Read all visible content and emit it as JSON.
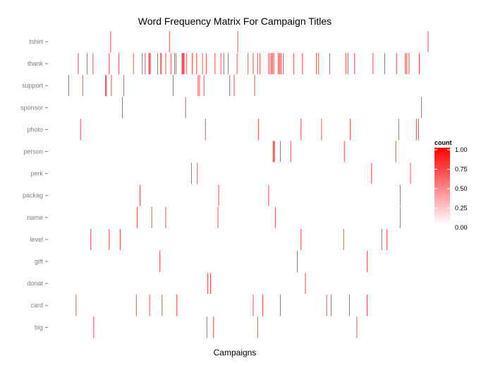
{
  "chart_data": {
    "type": "heatmap",
    "title": "Word Frequency Matrix For Campaign Titles",
    "xlabel": "Campaigns",
    "ylabel": "",
    "x_range": [
      0,
      500
    ],
    "grid": false,
    "words": [
      "tshirt",
      "thank",
      "support",
      "sponsor",
      "photo",
      "person",
      "perk",
      "packag",
      "name",
      "level",
      "gift",
      "donat",
      "card",
      "big"
    ],
    "cell_color_max": "#ff0000",
    "cell_color_min": "#ffffff",
    "cells": [
      {
        "word": "tshirt",
        "campaigns": [
          80,
          160,
          253,
          512
        ]
      },
      {
        "word": "thank",
        "campaigns": [
          36,
          48,
          56,
          78,
          91,
          111,
          123,
          127,
          132,
          133,
          134,
          144,
          148,
          149,
          155,
          162,
          167,
          169,
          177,
          178,
          179,
          180,
          183,
          191,
          197,
          205,
          210,
          222,
          230,
          234,
          240,
          252,
          267,
          274,
          280,
          283,
          295,
          297,
          299,
          300,
          302,
          308,
          310,
          312,
          315,
          329,
          341,
          360,
          363,
          378,
          400,
          403,
          412,
          437,
          453,
          469,
          481,
          483,
          486,
          500
        ]
      },
      {
        "word": "support",
        "campaigns": [
          23,
          42,
          73,
          74,
          81,
          98,
          165,
          199,
          201,
          207,
          242,
          248,
          276
        ]
      },
      {
        "word": "sponsor",
        "campaigns": [
          96,
          182,
          503
        ]
      },
      {
        "word": "photo",
        "campaigns": [
          39,
          209,
          281,
          339,
          367,
          406,
          472,
          496,
          499
        ]
      },
      {
        "word": "person",
        "campaigns": [
          301,
          302,
          303,
          311,
          325,
          398,
          468
        ]
      },
      {
        "word": "perk",
        "campaigns": [
          190,
          198,
          435,
          488
        ]
      },
      {
        "word": "packag",
        "campaigns": [
          120,
          227,
          295,
          474
        ]
      },
      {
        "word": "name",
        "campaigns": [
          116,
          136,
          155,
          226,
          304,
          474
        ]
      },
      {
        "word": "level",
        "campaigns": [
          53,
          78,
          93,
          339,
          397,
          449,
          456
        ]
      },
      {
        "word": "gift",
        "campaigns": [
          147,
          334,
          429
        ]
      },
      {
        "word": "donat",
        "campaigns": [
          212,
          216,
          345
        ]
      },
      {
        "word": "card",
        "campaigns": [
          33,
          115,
          133,
          150,
          170,
          274,
          287,
          311,
          374,
          380,
          405,
          429
        ]
      },
      {
        "word": "big",
        "campaigns": [
          57,
          211,
          220,
          280,
          415
        ]
      }
    ],
    "legend": {
      "title": "count",
      "placement": "right",
      "ticks": [
        "1.00",
        "0.75",
        "0.50",
        "0.25",
        "0.00"
      ],
      "tick_values": [
        1.0,
        0.75,
        0.5,
        0.25,
        0.0
      ],
      "color_high": "#ff0000",
      "color_low": "#ffffff"
    }
  }
}
